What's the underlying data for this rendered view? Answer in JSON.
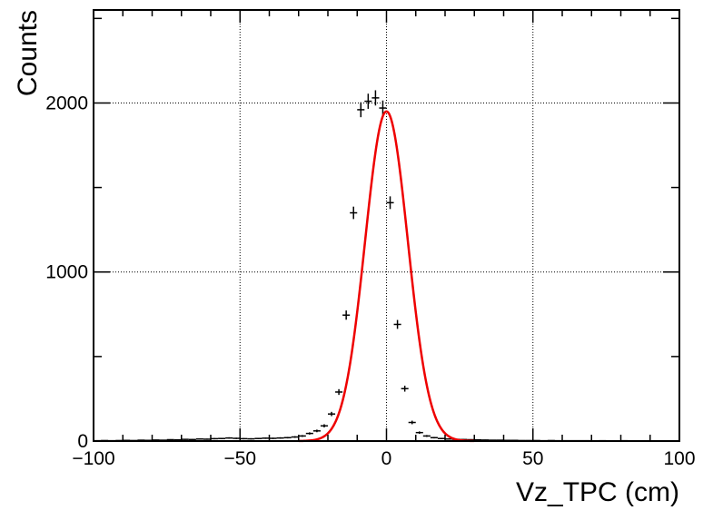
{
  "chart_data": {
    "type": "scatter",
    "title": "",
    "xlabel": "Vz_TPC (cm)",
    "ylabel": "Counts",
    "xlim": [
      -100,
      100
    ],
    "ylim": [
      0,
      2550
    ],
    "x_ticks": [
      "−100",
      "−50",
      "0",
      "50",
      "100"
    ],
    "x_tick_values": [
      -100,
      -50,
      0,
      50,
      100
    ],
    "y_ticks": [
      "0",
      "1000",
      "2000"
    ],
    "y_tick_values": [
      0,
      1000,
      2000
    ],
    "grid": true,
    "bin_width": 2.5,
    "series": [
      {
        "kind": "histogram-points",
        "color": "#000000",
        "x": [
          -98.75,
          -96.25,
          -93.75,
          -91.25,
          -88.75,
          -86.25,
          -83.75,
          -81.25,
          -78.75,
          -76.25,
          -73.75,
          -71.25,
          -68.75,
          -66.25,
          -63.75,
          -61.25,
          -58.75,
          -56.25,
          -53.75,
          -51.25,
          -48.75,
          -46.25,
          -43.75,
          -41.25,
          -38.75,
          -36.25,
          -33.75,
          -31.25,
          -28.75,
          -26.25,
          -23.75,
          -21.25,
          -18.75,
          -16.25,
          -13.75,
          -11.25,
          -8.75,
          -6.25,
          -3.75,
          -1.25,
          1.25,
          3.75,
          6.25,
          8.75,
          11.25,
          13.75,
          16.25,
          18.75,
          21.25,
          23.75,
          26.25,
          28.75,
          31.25,
          33.75,
          36.25,
          38.75,
          41.25,
          43.75,
          46.25,
          48.75,
          51.25,
          53.75,
          56.25,
          58.75,
          61.25,
          63.75,
          66.25,
          68.75,
          71.25,
          73.75,
          76.25,
          78.75,
          81.25,
          83.75,
          86.25,
          88.75,
          91.25,
          93.75,
          96.25,
          98.75
        ],
        "y": [
          2,
          3,
          2,
          3,
          4,
          3,
          5,
          4,
          6,
          5,
          8,
          7,
          10,
          9,
          12,
          11,
          14,
          15,
          18,
          16,
          14,
          13,
          15,
          17,
          16,
          18,
          20,
          24,
          30,
          45,
          60,
          90,
          160,
          290,
          745,
          1350,
          1960,
          2010,
          2030,
          1970,
          1410,
          690,
          310,
          110,
          50,
          30,
          20,
          15,
          12,
          10,
          9,
          8,
          7,
          6,
          5,
          5,
          4,
          4,
          3,
          3,
          3,
          2,
          3,
          2,
          2,
          2,
          2,
          2,
          1,
          2,
          1,
          1,
          2,
          1,
          1,
          1,
          1,
          1,
          1,
          1
        ]
      },
      {
        "kind": "gaussian-fit",
        "color": "#ee0000",
        "amplitude": 1950,
        "mean": 0,
        "sigma": 7.3,
        "range": [
          -30,
          30
        ]
      }
    ]
  }
}
